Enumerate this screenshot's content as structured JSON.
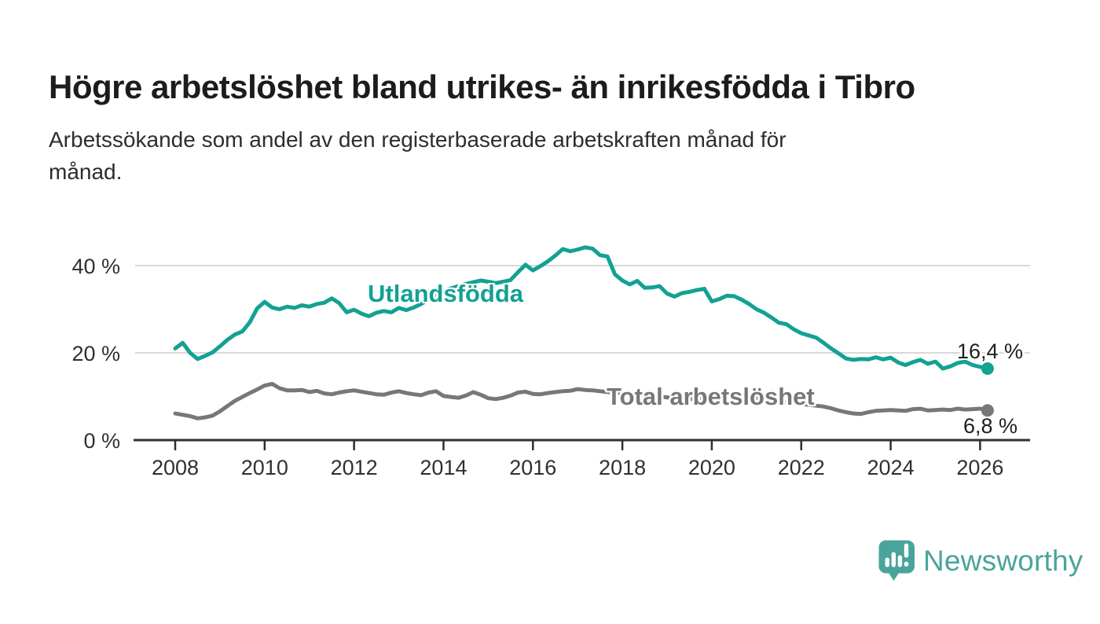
{
  "header": {
    "title": "Högre arbetslöshet bland utrikes- än inrikesfödda i Tibro",
    "subtitle_lines": [
      "Arbetssökande som andel av den registerbaserade arbetskraften månad för",
      "månad."
    ]
  },
  "branding": {
    "logo_text": "Newsworthy",
    "logo_color": "#4aa49b"
  },
  "colors": {
    "background": "#ffffff",
    "title_text": "#1c1c1c",
    "subtitle_text": "#2d2d2d",
    "axis_text": "#303030",
    "axis_line": "#2f2f2f",
    "gridline": "#d9d9d9",
    "series_foreign_born": "#13a193",
    "series_total": "#77777a",
    "end_label_text": "#1f1f1f"
  },
  "chart_data": {
    "type": "line",
    "title": "Högre arbetslöshet bland utrikes- än inrikesfödda i Tibro",
    "subtitle": "Arbetssökande som andel av den registerbaserade arbetskraften månad för månad.",
    "unit": "%",
    "grid": "horizontal-only",
    "legend": "inline-labels-on-lines",
    "y_axis": {
      "tick_values": [
        0,
        20,
        40
      ],
      "tick_labels": [
        "0 %",
        "20 %",
        "40 %"
      ],
      "range": [
        0,
        47.5
      ]
    },
    "x_axis": {
      "tick_years": [
        2008,
        2010,
        2012,
        2014,
        2016,
        2018,
        2020,
        2022,
        2024,
        2026
      ],
      "tick_labels": [
        "2008",
        "2010",
        "2012",
        "2014",
        "2016",
        "2018",
        "2020",
        "2022",
        "2024",
        "2026"
      ],
      "range": [
        2007.1,
        2027.0
      ]
    },
    "sampling": {
      "start_year": 2008.0,
      "step_years": 0.16667,
      "note": "values estimated from gridlines, monthly-series approximated at 2-month steps"
    },
    "series": [
      {
        "name": "Utlandsfödda",
        "color": "#13a193",
        "end_label": "16,4 %",
        "end_value": 16.4,
        "values": [
          21,
          22.3,
          20,
          18.6,
          19.3,
          20.1,
          21.5,
          23,
          24.2,
          24.9,
          27,
          30.2,
          31.7,
          30.4,
          30,
          30.6,
          30.3,
          30.9,
          30.6,
          31.2,
          31.5,
          32.5,
          31.4,
          29.3,
          29.9,
          29,
          28.4,
          29.2,
          29.6,
          29.3,
          30.3,
          29.8,
          30.4,
          31.2,
          32.3,
          33.4,
          34.2,
          34.8,
          35.3,
          35.8,
          36.2,
          36.6,
          36.3,
          36,
          36.3,
          36.7,
          38.5,
          40.2,
          38.9,
          39.9,
          41,
          42.3,
          43.8,
          43.3,
          43.7,
          44.2,
          43.9,
          42.4,
          42.1,
          38,
          36.6,
          35.7,
          36.5,
          34.9,
          35,
          35.3,
          33.6,
          32.9,
          33.7,
          34,
          34.4,
          34.7,
          31.8,
          32.3,
          33.1,
          33,
          32.2,
          31.2,
          30,
          29.2,
          28.1,
          26.9,
          26.6,
          25.4,
          24.5,
          24,
          23.5,
          22.3,
          21,
          19.9,
          18.7,
          18.4,
          18.6,
          18.5,
          19,
          18.5,
          18.9,
          17.8,
          17.2,
          17.9,
          18.4,
          17.5,
          18,
          16.4,
          16.9,
          17.7,
          18,
          17.2,
          16.8,
          16.4
        ]
      },
      {
        "name": "Total arbetslöshet",
        "color": "#77777a",
        "end_label": "6,8 %",
        "end_value": 6.8,
        "values": [
          6.1,
          5.8,
          5.5,
          5,
          5.2,
          5.6,
          6.6,
          7.8,
          9,
          9.9,
          10.8,
          11.6,
          12.5,
          12.9,
          11.9,
          11.4,
          11.4,
          11.5,
          11,
          11.3,
          10.7,
          10.5,
          10.9,
          11.2,
          11.4,
          11.1,
          10.8,
          10.5,
          10.4,
          10.9,
          11.2,
          10.8,
          10.5,
          10.3,
          10.9,
          11.2,
          10.1,
          9.9,
          9.7,
          10.2,
          11,
          10.4,
          9.6,
          9.4,
          9.7,
          10.2,
          10.9,
          11.1,
          10.6,
          10.5,
          10.8,
          11,
          11.2,
          11.3,
          11.7,
          11.5,
          11.4,
          11.2,
          11,
          10.9,
          10.8,
          10.6,
          10.4,
          10.3,
          10.1,
          10,
          9.8,
          9.6,
          9.5,
          9.4,
          9.4,
          9.5,
          9.7,
          10.2,
          10.6,
          10.5,
          10.2,
          10,
          9.7,
          9.4,
          9.1,
          8.9,
          8.7,
          8.5,
          8.3,
          8.1,
          7.9,
          7.7,
          7.3,
          6.8,
          6.4,
          6.1,
          6,
          6.4,
          6.7,
          6.8,
          6.9,
          6.8,
          6.7,
          7.1,
          7.2,
          6.8,
          6.9,
          7,
          6.9,
          7.2,
          7,
          7.1,
          7.2,
          6.8
        ]
      }
    ]
  }
}
